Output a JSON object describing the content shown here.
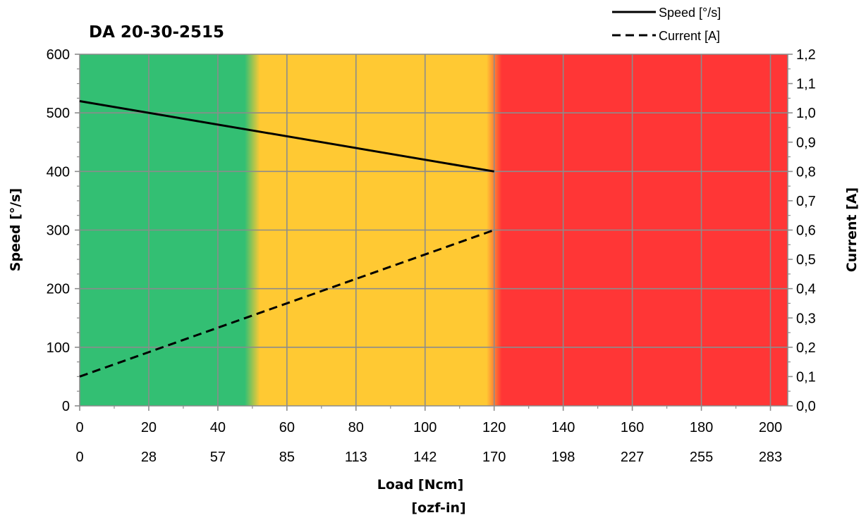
{
  "chart_data": {
    "type": "line",
    "title": "DA 20-30-2515",
    "xlabel": "Load [Ncm]",
    "xlabel2": "[ozf-in]",
    "ylabel": "Speed  [°/s]",
    "y2label": "Current  [A]",
    "xlim": [
      0,
      205
    ],
    "ylim": [
      0,
      600
    ],
    "y2lim": [
      0,
      1.2
    ],
    "x_ticks": [
      0,
      20,
      40,
      60,
      80,
      100,
      120,
      140,
      160,
      180,
      200
    ],
    "x_tick_labels": [
      "0",
      "20",
      "40",
      "60",
      "80",
      "100",
      "120",
      "140",
      "160",
      "180",
      "200"
    ],
    "x2_tick_labels": [
      "0",
      "28",
      "57",
      "85",
      "113",
      "142",
      "170",
      "198",
      "227",
      "255",
      "283"
    ],
    "y_ticks": [
      0,
      100,
      200,
      300,
      400,
      500,
      600
    ],
    "y_tick_labels": [
      "0",
      "100",
      "200",
      "300",
      "400",
      "500",
      "600"
    ],
    "y2_ticks": [
      0,
      0.1,
      0.2,
      0.3,
      0.4,
      0.5,
      0.6,
      0.7,
      0.8,
      0.9,
      1.0,
      1.1,
      1.2
    ],
    "y2_tick_labels": [
      "0,0",
      "0,1",
      "0,2",
      "0,3",
      "0,4",
      "0,5",
      "0,6",
      "0,7",
      "0,8",
      "0,9",
      "1,0",
      "1,1",
      "1,2"
    ],
    "grid": true,
    "legend_position": "top-right",
    "zones": [
      {
        "from": 0,
        "to": 50,
        "color": "#33bf73"
      },
      {
        "from": 50,
        "to": 120,
        "color": "#ffc933"
      },
      {
        "from": 120,
        "to": 205,
        "color": "#ff3636"
      }
    ],
    "series": [
      {
        "name": "Speed [°/s]",
        "axis": "left",
        "style": "solid",
        "x": [
          0,
          120
        ],
        "y": [
          520,
          400
        ]
      },
      {
        "name": "Current [A]",
        "axis": "right",
        "style": "dashed",
        "x": [
          0,
          120
        ],
        "y": [
          0.1,
          0.6
        ]
      }
    ]
  }
}
